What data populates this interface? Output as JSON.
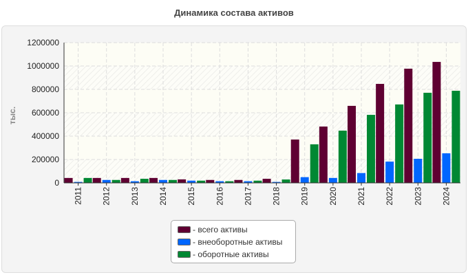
{
  "chart_data": {
    "type": "bar",
    "title": "Динамика состава активов",
    "ylabel": "тыс.",
    "xlabel": "",
    "ylim": [
      0,
      1200000
    ],
    "yticks": [
      0,
      200000,
      400000,
      600000,
      800000,
      1000000,
      1200000
    ],
    "grid": true,
    "legend_placement": "bottom-center",
    "categories": [
      "2011",
      "2012",
      "2013",
      "2014",
      "2015",
      "2016",
      "2017",
      "2018",
      "2019",
      "2020",
      "2021",
      "2022",
      "2023",
      "2024"
    ],
    "series": [
      {
        "name": "- всего активы",
        "color": "#5f0032",
        "values": [
          42000,
          42000,
          42000,
          42000,
          30000,
          25000,
          25000,
          35000,
          371000,
          482000,
          659000,
          847000,
          977000,
          1035000
        ]
      },
      {
        "name": "- внеоборотные активы",
        "color": "#0066ff",
        "values": [
          8000,
          25000,
          14000,
          25000,
          19000,
          14000,
          14000,
          8000,
          49000,
          42000,
          84000,
          182000,
          206000,
          253000
        ]
      },
      {
        "name": "- оборотные активы",
        "color": "#008833",
        "values": [
          42000,
          25000,
          35000,
          25000,
          19000,
          14000,
          19000,
          29000,
          330000,
          447000,
          582000,
          671000,
          771000,
          788000
        ]
      }
    ]
  }
}
